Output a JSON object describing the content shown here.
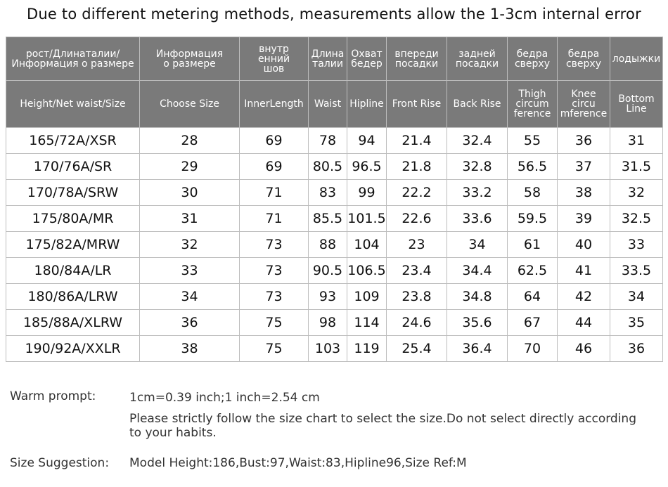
{
  "title": "Due to different metering methods, measurements allow the 1-3cm internal error",
  "header_ru": [
    "рост/Длинаталии/\nИнформация о размере",
    "Информация\nо размере",
    "внутр\nенний\nшов",
    "Длина\nталии",
    "Охват\nбедер",
    "впереди\nпосадки",
    "задней\nпосадки",
    "бедра\nсверху",
    "бедра\nсверху",
    "лодыжки"
  ],
  "header_en": [
    "Height/Net waist/Size",
    "Choose Size",
    "InnerLength",
    "Waist",
    "Hipline",
    "Front Rise",
    "Back Rise",
    "Thigh\ncircum\nference",
    "Knee\ncircu\nmference",
    "Bottom\nLine"
  ],
  "rows": [
    [
      "165/72A/XSR",
      "28",
      "69",
      "78",
      "94",
      "21.4",
      "32.4",
      "55",
      "36",
      "31"
    ],
    [
      "170/76A/SR",
      "29",
      "69",
      "80.5",
      "96.5",
      "21.8",
      "32.8",
      "56.5",
      "37",
      "31.5"
    ],
    [
      "170/78A/SRW",
      "30",
      "71",
      "83",
      "99",
      "22.2",
      "33.2",
      "58",
      "38",
      "32"
    ],
    [
      "175/80A/MR",
      "31",
      "71",
      "85.5",
      "101.5",
      "22.6",
      "33.6",
      "59.5",
      "39",
      "32.5"
    ],
    [
      "175/82A/MRW",
      "32",
      "73",
      "88",
      "104",
      "23",
      "34",
      "61",
      "40",
      "33"
    ],
    [
      "180/84A/LR",
      "33",
      "73",
      "90.5",
      "106.5",
      "23.4",
      "34.4",
      "62.5",
      "41",
      "33.5"
    ],
    [
      "180/86A/LRW",
      "34",
      "73",
      "93",
      "109",
      "23.8",
      "34.8",
      "64",
      "42",
      "34"
    ],
    [
      "185/88A/XLRW",
      "36",
      "75",
      "98",
      "114",
      "24.6",
      "35.6",
      "67",
      "44",
      "35"
    ],
    [
      "190/92A/XXLR",
      "38",
      "75",
      "103",
      "119",
      "25.4",
      "36.4",
      "70",
      "46",
      "36"
    ]
  ],
  "warm_prompt": {
    "label": "Warm prompt:",
    "line1": "1cm=0.39 inch;1 inch=2.54 cm",
    "line2": "Please strictly follow the size chart  to select the size.Do not select directly according to your habits."
  },
  "size_suggestion": {
    "label": "Size Suggestion:",
    "value": "Model Height:186,Bust:97,Waist:83,Hipline96,Size Ref:M"
  }
}
